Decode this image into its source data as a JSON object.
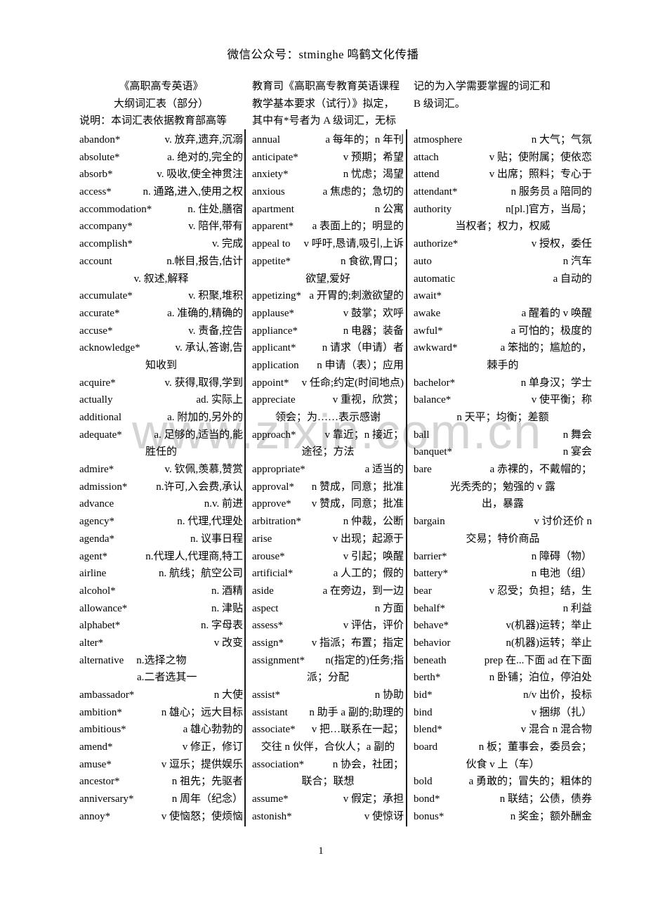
{
  "page": {
    "header": "微信公众号：stminghe 鸣鹤文化传播",
    "watermark": "www.zixin.com.cn",
    "page_number": "1"
  },
  "columns": [
    {
      "intro": [
        "《高职高专英语》",
        "大纲词汇表（部分）",
        "说明：本词汇表依据教育部高等"
      ],
      "intro_align": [
        "center",
        "center",
        "left"
      ],
      "entries": [
        {
          "w": "abandon*",
          "d": "v. 放弃,遗弃,沉溺"
        },
        {
          "w": "absolute*",
          "d": "a. 绝对的,完全的"
        },
        {
          "w": "absorb*",
          "d": "v. 吸收,使全神贯注"
        },
        {
          "w": "access*",
          "d": "n. 通路,进入,使用之权"
        },
        {
          "w": "accommodation*",
          "d": "n. 住处,膳宿"
        },
        {
          "w": "accompany*",
          "d": "v. 陪伴,带有"
        },
        {
          "w": "accomplish*",
          "d": "v. 完成"
        },
        {
          "w": "account",
          "d": "n.帐目,报告,估计"
        },
        {
          "c": "v. 叙述,解释"
        },
        {
          "w": "accumulate*",
          "d": "v. 积聚,堆积"
        },
        {
          "w": "accurate*",
          "d": "a. 准确的,精确的"
        },
        {
          "w": "accuse*",
          "d": "v. 责备,控告"
        },
        {
          "w": "acknowledge*",
          "d": "v. 承认,答谢,告"
        },
        {
          "c": "知收到"
        },
        {
          "w": "acquire*",
          "d": "v. 获得,取得,学到"
        },
        {
          "w": "actually",
          "d": "ad. 实际上"
        },
        {
          "w": "additional",
          "d": "a. 附加的,另外的"
        },
        {
          "w": "adequate*",
          "d": "a. 足够的,适当的,能"
        },
        {
          "c": "胜任的"
        },
        {
          "w": "admire*",
          "d": "v. 钦佩,羡慕,赞赏"
        },
        {
          "w": "admission*",
          "d": "n.许可,入会费,承认"
        },
        {
          "w": "advance",
          "d": "n.v. 前进"
        },
        {
          "w": "agency*",
          "d": "n. 代理,代理处"
        },
        {
          "w": "agenda*",
          "d": "n. 议事日程"
        },
        {
          "w": "agent*",
          "d": "n.代理人,代理商,特工"
        },
        {
          "w": "airline",
          "d": "n. 航线；航空公司"
        },
        {
          "w": "alcohol*",
          "d": "n. 酒精"
        },
        {
          "w": "allowance*",
          "d": "n. 津贴"
        },
        {
          "w": "alphabet*",
          "d": "n. 字母表"
        },
        {
          "w": "alter*",
          "d": "v 改变"
        },
        {
          "w": "alternative",
          "dl": "n.选择之物"
        },
        {
          "c": "a.二者选其一",
          "ci": true
        },
        {
          "w": "ambassador*",
          "d": "n 大使"
        },
        {
          "w": "ambition*",
          "d": "n 雄心；远大目标"
        },
        {
          "w": "ambitious*",
          "d": "a 雄心勃勃的"
        },
        {
          "w": "amend*",
          "d": "v 修正，修订"
        },
        {
          "w": "amuse*",
          "d": "v 逗乐；提供娱乐"
        },
        {
          "w": "ancestor*",
          "d": "n 祖先；先驱者"
        },
        {
          "w": "anniversary*",
          "d": "n 周年（纪念）"
        },
        {
          "w": "annoy*",
          "d": "v 使恼怒；使烦恼"
        }
      ]
    },
    {
      "intro": [
        "教育司《高职高专教育英语课程",
        "教学基本要求（试行）》拟定，",
        "其中有*号者为 A 级词汇，无标"
      ],
      "intro_align": [
        "left",
        "left",
        "left"
      ],
      "entries": [
        {
          "w": "annual",
          "d": "a 每年的；n 年刊"
        },
        {
          "w": "anticipate*",
          "d": "v 预期；希望"
        },
        {
          "w": "anxiety*",
          "d": "n 忧虑；渴望"
        },
        {
          "w": "anxious",
          "d": "a 焦虑的；急切的"
        },
        {
          "w": "apartment",
          "d": "n 公寓"
        },
        {
          "w": "apparent*",
          "d": "a 表面上的；明显的"
        },
        {
          "w": "appeal to",
          "d": "v 呼吁,恳请,吸引,上诉"
        },
        {
          "w": "appetite*",
          "d": "n 食欲,胃口；"
        },
        {
          "c": "欲望,爱好"
        },
        {
          "w": "appetizing*",
          "d": "a 开胃的;刺激欲望的"
        },
        {
          "w": "applause*",
          "d": "v 鼓掌；欢呼"
        },
        {
          "w": "appliance*",
          "d": "n 电器；装备"
        },
        {
          "w": "applicant*",
          "d": "n 请求（申请）者"
        },
        {
          "w": "application",
          "d": "n 申请（表）；应用"
        },
        {
          "w": "appoint*",
          "d": "v 任命;约定(时间地点)"
        },
        {
          "w": "appreciate",
          "d": "v 重视，欣赏；"
        },
        {
          "c": "领会；为……表示感谢"
        },
        {
          "w": "approach*",
          "d": "v 靠近；n 接近；"
        },
        {
          "c": "途径；方法"
        },
        {
          "w": "appropriate*",
          "d": "a 适当的"
        },
        {
          "w": "approval*",
          "d": "n 赞成，同意；批准"
        },
        {
          "w": "approve*",
          "d": "v 赞成，同意；批准"
        },
        {
          "w": "arbitration*",
          "d": "n 仲裁，公断"
        },
        {
          "w": "arise",
          "d": "v 出现；起源于"
        },
        {
          "w": "arouse*",
          "d": "v 引起；唤醒"
        },
        {
          "w": "artificial*",
          "d": "a 人工的；假的"
        },
        {
          "w": "aside",
          "d": "a 在旁边，到一边"
        },
        {
          "w": "aspect",
          "d": "n 方面"
        },
        {
          "w": "assess*",
          "d": "v 评估，评价"
        },
        {
          "w": "assign*",
          "d": "v 指派；布置；指定"
        },
        {
          "w": "assignment*",
          "d": "n(指定的)任务;指"
        },
        {
          "c": "派；分配"
        },
        {
          "w": "assist*",
          "d": "n 协助"
        },
        {
          "w": "assistant",
          "d": "n 助手 a 副的;助理的"
        },
        {
          "w": "associate*",
          "d": "v 把…联系在一起；"
        },
        {
          "c": "交往 n 伙伴，合伙人；a 副的"
        },
        {
          "w": "association*",
          "d": "n 协会，社团；"
        },
        {
          "c": "联合；联想"
        },
        {
          "w": "assume*",
          "d": "v 假定；承担"
        },
        {
          "w": "astonish*",
          "d": "v 使惊讶"
        }
      ]
    },
    {
      "intro": [
        "记的为入学需要掌握的词汇和",
        "B 级词汇。"
      ],
      "intro_align": [
        "left",
        "left"
      ],
      "entries": [
        {
          "w": "atmosphere",
          "d": "n 大气；气氛"
        },
        {
          "w": "attach",
          "d": "v 贴；使附属；使依恋"
        },
        {
          "w": "attend",
          "d": "v 出席；照料；专心于"
        },
        {
          "w": "attendant*",
          "d": "n 服务员 a 陪同的"
        },
        {
          "w": "authority",
          "d": "n[pl.]官方，当局；"
        },
        {
          "c": "当权者；权力，权威"
        },
        {
          "w": "authorize*",
          "d": "v 授权，委任"
        },
        {
          "w": "auto",
          "d": "n 汽车"
        },
        {
          "w": "automatic",
          "d": "a 自动的"
        },
        {
          "w": "await*",
          "d": ""
        },
        {
          "w": "awake",
          "d": "a 醒着的 v 唤醒"
        },
        {
          "w": "awful*",
          "d": "a 可怕的；极度的"
        },
        {
          "w": "awkward*",
          "d": "a 笨拙的；尴尬的，"
        },
        {
          "c": "棘手的"
        },
        {
          "w": "bachelor*",
          "d": "n 单身汉；学士"
        },
        {
          "w": "balance*",
          "d": "v 使平衡；称"
        },
        {
          "c": "n 天平；均衡；差额"
        },
        {
          "w": "ball",
          "d": "n 舞会"
        },
        {
          "w": "banquet*",
          "d": "n 宴会"
        },
        {
          "w": "bare",
          "d": "a 赤裸的，不戴帽的；"
        },
        {
          "c": "光秃秃的；勉强的 v 露"
        },
        {
          "c": "出，暴露"
        },
        {
          "w": "bargain",
          "d": "v 讨价还价 n"
        },
        {
          "c": "交易；特价商品"
        },
        {
          "w": "barrier*",
          "d": "n 障碍（物）"
        },
        {
          "w": "battery*",
          "d": "n 电池（组）"
        },
        {
          "w": "bear",
          "d": "v 忍受；负担；结，生"
        },
        {
          "w": "behalf*",
          "d": "n 利益"
        },
        {
          "w": "behave*",
          "d": "v(机器)运转；举止"
        },
        {
          "w": "behavior",
          "d": "n(机器)运转；举止"
        },
        {
          "w": "beneath",
          "d": "prep 在...下面 ad 在下面"
        },
        {
          "w": "berth*",
          "d": "n 卧铺；泊位，停泊处"
        },
        {
          "w": "bid*",
          "d": "n/v 出价，投标"
        },
        {
          "w": "bind",
          "d": "v 捆绑（扎）"
        },
        {
          "w": "blend*",
          "d": "v 混合 n 混合物"
        },
        {
          "w": "board",
          "d": "n 板；董事会，委员会；"
        },
        {
          "c": "伙食 v 上（车）"
        },
        {
          "w": "bold",
          "d": "a 勇敢的；冒失的；粗体的"
        },
        {
          "w": "bond*",
          "d": "n 联结；公债，债券"
        },
        {
          "w": "bonus*",
          "d": "n 奖金；额外酬金"
        }
      ]
    }
  ]
}
